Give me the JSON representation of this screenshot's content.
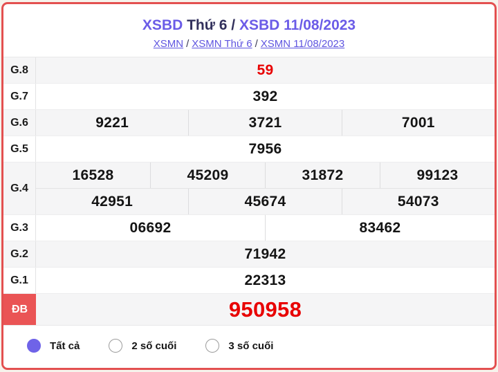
{
  "header": {
    "title": {
      "part1": "XSBD",
      "part2": "Thứ 6 /",
      "part3": "XSBD 11/08/2023"
    },
    "breadcrumb": {
      "links": [
        "XSMN",
        "XSMN Thứ 6",
        "XSMN 11/08/2023"
      ],
      "separator": "/"
    }
  },
  "results": {
    "rows": [
      {
        "label": "G.8",
        "shade": true,
        "red": true,
        "special": false,
        "groups": [
          [
            "59"
          ]
        ]
      },
      {
        "label": "G.7",
        "shade": false,
        "red": false,
        "special": false,
        "groups": [
          [
            "392"
          ]
        ]
      },
      {
        "label": "G.6",
        "shade": true,
        "red": false,
        "special": false,
        "groups": [
          [
            "9221",
            "3721",
            "7001"
          ]
        ]
      },
      {
        "label": "G.5",
        "shade": false,
        "red": false,
        "special": false,
        "groups": [
          [
            "7956"
          ]
        ]
      },
      {
        "label": "G.4",
        "shade": true,
        "red": false,
        "special": false,
        "groups": [
          [
            "16528",
            "45209",
            "31872",
            "99123"
          ],
          [
            "42951",
            "45674",
            "54073"
          ]
        ]
      },
      {
        "label": "G.3",
        "shade": false,
        "red": false,
        "special": false,
        "groups": [
          [
            "06692",
            "83462"
          ]
        ]
      },
      {
        "label": "G.2",
        "shade": true,
        "red": false,
        "special": false,
        "groups": [
          [
            "71942"
          ]
        ]
      },
      {
        "label": "G.1",
        "shade": false,
        "red": false,
        "special": false,
        "groups": [
          [
            "22313"
          ]
        ]
      },
      {
        "label": "ĐB",
        "shade": true,
        "red": true,
        "special": true,
        "groups": [
          [
            "950958"
          ]
        ]
      }
    ]
  },
  "footer": {
    "options": [
      {
        "label": "Tất cả",
        "selected": true
      },
      {
        "label": "2 số cuối",
        "selected": false
      },
      {
        "label": "3 số cuối",
        "selected": false
      }
    ]
  },
  "colors": {
    "accent_purple": "#6b5ce7",
    "link_blue": "#5f55e0",
    "result_red": "#e80000",
    "special_badge_red": "#ea5455",
    "page_border_red": "#e35050",
    "shade_gray": "#f5f5f6"
  }
}
